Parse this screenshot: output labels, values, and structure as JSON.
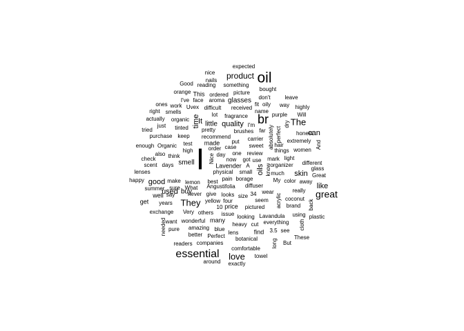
{
  "word_cloud": {
    "text_color": "#000000",
    "background": "#ffffff",
    "words": [
      {
        "text": "I",
        "rotated": false
      },
      {
        "text": "oil",
        "rotated": false
      },
      {
        "text": "br",
        "rotated": false
      },
      {
        "text": "essential",
        "rotated": false
      },
      {
        "text": "great",
        "rotated": false
      },
      {
        "text": "love",
        "rotated": false
      },
      {
        "text": "They",
        "rotated": false
      },
      {
        "text": "The",
        "rotated": false
      },
      {
        "text": "product",
        "rotated": false
      },
      {
        "text": "quality",
        "rotated": false
      },
      {
        "text": "like",
        "rotated": false
      },
      {
        "text": "oils",
        "rotated": true
      },
      {
        "text": "It",
        "rotated": false
      },
      {
        "text": "time",
        "rotated": true
      },
      {
        "text": "can",
        "rotated": false
      },
      {
        "text": "good",
        "rotated": false
      },
      {
        "text": "used",
        "rotated": false
      },
      {
        "text": "skin",
        "rotated": false
      },
      {
        "text": "smell",
        "rotated": false
      },
      {
        "text": "little",
        "rotated": false
      },
      {
        "text": "glasses",
        "rotated": false
      },
      {
        "text": "buy",
        "rotated": false
      },
      {
        "text": "made",
        "rotated": false
      },
      {
        "text": "expected",
        "rotated": false
      },
      {
        "text": "nice",
        "rotated": false
      },
      {
        "text": "nails",
        "rotated": false
      },
      {
        "text": "reading",
        "rotated": false
      },
      {
        "text": "something",
        "rotated": false
      },
      {
        "text": "Good",
        "rotated": false
      },
      {
        "text": "bought",
        "rotated": false
      },
      {
        "text": "orange",
        "rotated": false
      },
      {
        "text": "This",
        "rotated": false
      },
      {
        "text": "ordered",
        "rotated": false
      },
      {
        "text": "picture",
        "rotated": false
      },
      {
        "text": "don't",
        "rotated": false
      },
      {
        "text": "I've",
        "rotated": false
      },
      {
        "text": "face",
        "rotated": false
      },
      {
        "text": "aroma",
        "rotated": false
      },
      {
        "text": "leave",
        "rotated": false
      },
      {
        "text": "ones",
        "rotated": false
      },
      {
        "text": "work",
        "rotated": false
      },
      {
        "text": "fit",
        "rotated": false
      },
      {
        "text": "oily",
        "rotated": false
      },
      {
        "text": "way",
        "rotated": false
      },
      {
        "text": "Uvex",
        "rotated": false
      },
      {
        "text": "difficult",
        "rotated": false
      },
      {
        "text": "received",
        "rotated": false
      },
      {
        "text": "highly",
        "rotated": false
      },
      {
        "text": "right",
        "rotated": false
      },
      {
        "text": "smells",
        "rotated": false
      },
      {
        "text": "lot",
        "rotated": false
      },
      {
        "text": "fragrance",
        "rotated": false
      },
      {
        "text": "name",
        "rotated": false
      },
      {
        "text": "purple",
        "rotated": false
      },
      {
        "text": "Will",
        "rotated": false
      },
      {
        "text": "actually",
        "rotated": false
      },
      {
        "text": "organic",
        "rotated": false
      },
      {
        "text": "I'm",
        "rotated": false
      },
      {
        "text": "dry",
        "rotated": true
      },
      {
        "text": "just",
        "rotated": false
      },
      {
        "text": "tinted",
        "rotated": false
      },
      {
        "text": "pretty",
        "rotated": false
      },
      {
        "text": "brushes",
        "rotated": false
      },
      {
        "text": "far",
        "rotated": false
      },
      {
        "text": "tried",
        "rotated": false
      },
      {
        "text": "honest",
        "rotated": false
      },
      {
        "text": "purchase",
        "rotated": false
      },
      {
        "text": "keep",
        "rotated": false
      },
      {
        "text": "recommend",
        "rotated": false
      },
      {
        "text": "carrier",
        "rotated": false
      },
      {
        "text": "perfect",
        "rotated": true
      },
      {
        "text": "extremely",
        "rotated": false
      },
      {
        "text": "absolutely",
        "rotated": true
      },
      {
        "text": "enough",
        "rotated": false
      },
      {
        "text": "Organic",
        "rotated": false
      },
      {
        "text": "test",
        "rotated": false
      },
      {
        "text": "put",
        "rotated": false
      },
      {
        "text": "sweet",
        "rotated": false
      },
      {
        "text": "hair",
        "rotated": false
      },
      {
        "text": "And",
        "rotated": true
      },
      {
        "text": "high",
        "rotated": false
      },
      {
        "text": "order",
        "rotated": false
      },
      {
        "text": "case",
        "rotated": false
      },
      {
        "text": "things",
        "rotated": false
      },
      {
        "text": "women",
        "rotated": false
      },
      {
        "text": "also",
        "rotated": false
      },
      {
        "text": "think",
        "rotated": false
      },
      {
        "text": "Nice",
        "rotated": true
      },
      {
        "text": "day",
        "rotated": false
      },
      {
        "text": "one",
        "rotated": false
      },
      {
        "text": "review",
        "rotated": false
      },
      {
        "text": "mark",
        "rotated": false
      },
      {
        "text": "light",
        "rotated": false
      },
      {
        "text": "check",
        "rotated": false
      },
      {
        "text": "now",
        "rotated": false
      },
      {
        "text": "got",
        "rotated": false
      },
      {
        "text": "use",
        "rotated": false
      },
      {
        "text": "different",
        "rotated": false
      },
      {
        "text": "scent",
        "rotated": false
      },
      {
        "text": "days",
        "rotated": false
      },
      {
        "text": "Lavender",
        "rotated": false
      },
      {
        "text": "A",
        "rotated": false
      },
      {
        "text": "know",
        "rotated": true
      },
      {
        "text": "organizer",
        "rotated": false
      },
      {
        "text": "glass",
        "rotated": false
      },
      {
        "text": "lenses",
        "rotated": false
      },
      {
        "text": "physical",
        "rotated": false
      },
      {
        "text": "small",
        "rotated": false
      },
      {
        "text": "much",
        "rotated": false
      },
      {
        "text": "Great",
        "rotated": false
      },
      {
        "text": "happy",
        "rotated": false
      },
      {
        "text": "make",
        "rotated": false
      },
      {
        "text": "lemon",
        "rotated": false
      },
      {
        "text": "best",
        "rotated": false
      },
      {
        "text": "pain",
        "rotated": false
      },
      {
        "text": "borage",
        "rotated": false
      },
      {
        "text": "My",
        "rotated": false
      },
      {
        "text": "color",
        "rotated": false
      },
      {
        "text": "away",
        "rotated": false
      },
      {
        "text": "summer",
        "rotated": false
      },
      {
        "text": "sure",
        "rotated": false
      },
      {
        "text": "What",
        "rotated": false
      },
      {
        "text": "Angustifolia",
        "rotated": false
      },
      {
        "text": "diffuser",
        "rotated": false
      },
      {
        "text": "wear",
        "rotated": false
      },
      {
        "text": "really",
        "rotated": false
      },
      {
        "text": "well",
        "rotated": false
      },
      {
        "text": "say",
        "rotated": false
      },
      {
        "text": "never",
        "rotated": false
      },
      {
        "text": "give",
        "rotated": false
      },
      {
        "text": "looks",
        "rotated": false
      },
      {
        "text": "size",
        "rotated": false
      },
      {
        "text": "34",
        "rotated": false
      },
      {
        "text": "coconut",
        "rotated": false
      },
      {
        "text": "get",
        "rotated": false
      },
      {
        "text": "years",
        "rotated": false
      },
      {
        "text": "yellow",
        "rotated": false
      },
      {
        "text": "four",
        "rotated": false
      },
      {
        "text": "seem",
        "rotated": false
      },
      {
        "text": "brand",
        "rotated": false
      },
      {
        "text": "back",
        "rotated": true
      },
      {
        "text": "10",
        "rotated": false
      },
      {
        "text": "price",
        "rotated": false
      },
      {
        "text": "pictured",
        "rotated": false
      },
      {
        "text": "acrylic",
        "rotated": true
      },
      {
        "text": "exchange",
        "rotated": false
      },
      {
        "text": "Very",
        "rotated": false
      },
      {
        "text": "others",
        "rotated": false
      },
      {
        "text": "issue",
        "rotated": false
      },
      {
        "text": "looking",
        "rotated": false
      },
      {
        "text": "Lavandula",
        "rotated": false
      },
      {
        "text": "using",
        "rotated": false
      },
      {
        "text": "plastic",
        "rotated": false
      },
      {
        "text": "want",
        "rotated": false
      },
      {
        "text": "wonderful",
        "rotated": false
      },
      {
        "text": "many",
        "rotated": false
      },
      {
        "text": "heavy",
        "rotated": false
      },
      {
        "text": "cut",
        "rotated": false
      },
      {
        "text": "everything",
        "rotated": false
      },
      {
        "text": "cloth",
        "rotated": true
      },
      {
        "text": "needed",
        "rotated": true
      },
      {
        "text": "pure",
        "rotated": false
      },
      {
        "text": "amazing",
        "rotated": false
      },
      {
        "text": "blue",
        "rotated": false
      },
      {
        "text": "lens",
        "rotated": false
      },
      {
        "text": "find",
        "rotated": false
      },
      {
        "text": "3.5",
        "rotated": false
      },
      {
        "text": "see",
        "rotated": false
      },
      {
        "text": "better",
        "rotated": false
      },
      {
        "text": "Perfect",
        "rotated": false
      },
      {
        "text": "botanical",
        "rotated": false
      },
      {
        "text": "These",
        "rotated": false
      },
      {
        "text": "readers",
        "rotated": false
      },
      {
        "text": "companies",
        "rotated": false
      },
      {
        "text": "long",
        "rotated": true
      },
      {
        "text": "But",
        "rotated": false
      },
      {
        "text": "comfortable",
        "rotated": false
      },
      {
        "text": "towel",
        "rotated": false
      },
      {
        "text": "around",
        "rotated": false
      },
      {
        "text": "exactly",
        "rotated": false
      }
    ]
  }
}
